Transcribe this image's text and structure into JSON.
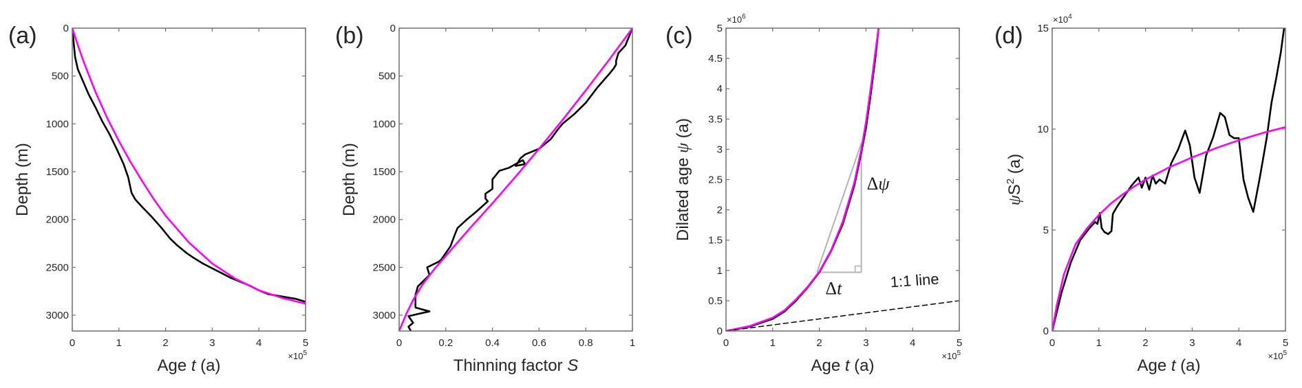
{
  "colors": {
    "data": "#000000",
    "fit": "#ff00ff",
    "triangle": "#b3b3b3",
    "axis": "#6e6e6e",
    "text": "#262626"
  },
  "chart_data": [
    {
      "panel": "(a)",
      "type": "line",
      "xlabel_parts": [
        "Age ",
        "t",
        " (a)"
      ],
      "ylabel": "Depth (m)",
      "xlim": [
        0,
        500000
      ],
      "ylim": [
        0,
        3165
      ],
      "y_reversed": true,
      "x_multiplier": "×10",
      "x_multiplier_exp": "5",
      "xticks": [
        0,
        1,
        2,
        3,
        4,
        5
      ],
      "xtick_labels": [
        "0",
        "1",
        "2",
        "3",
        "4",
        "5"
      ],
      "yticks": [
        0,
        500,
        1000,
        1500,
        2000,
        2500,
        3000
      ],
      "ytick_labels": [
        "0",
        "500",
        "1000",
        "1500",
        "2000",
        "2500",
        "3000"
      ],
      "series": [
        {
          "name": "data",
          "color": "#000000",
          "x": [
            0,
            0.02,
            0.06,
            0.12,
            0.2,
            0.35,
            0.5,
            0.65,
            0.8,
            0.95,
            1.1,
            1.2,
            1.27,
            1.35,
            1.5,
            1.7,
            1.9,
            2.1,
            2.25,
            2.45,
            2.6,
            2.8,
            3.0,
            3.2,
            3.4,
            3.6,
            3.8,
            4.0,
            4.2,
            4.5,
            4.8,
            5.0
          ],
          "y": [
            0,
            100,
            300,
            430,
            520,
            690,
            830,
            980,
            1110,
            1260,
            1420,
            1560,
            1720,
            1790,
            1870,
            1970,
            2080,
            2200,
            2270,
            2350,
            2400,
            2460,
            2510,
            2560,
            2610,
            2650,
            2690,
            2740,
            2780,
            2805,
            2830,
            2860
          ]
        },
        {
          "name": "fit",
          "color": "#ff00ff",
          "x": [
            0,
            0.1,
            0.25,
            0.5,
            0.75,
            1.0,
            1.25,
            1.5,
            1.75,
            2.0,
            2.5,
            3.0,
            3.5,
            4.0,
            4.5,
            5.0
          ],
          "y": [
            0,
            150,
            360,
            670,
            940,
            1180,
            1400,
            1600,
            1790,
            1960,
            2240,
            2460,
            2620,
            2740,
            2820,
            2880
          ]
        }
      ]
    },
    {
      "panel": "(b)",
      "type": "line",
      "xlabel_parts": [
        "Thinning factor ",
        "S",
        ""
      ],
      "ylabel": "Depth (m)",
      "xlim": [
        0,
        1
      ],
      "ylim": [
        0,
        3165
      ],
      "y_reversed": true,
      "xticks": [
        0,
        0.2,
        0.4,
        0.6,
        0.8,
        1
      ],
      "xtick_labels": [
        "0",
        "0.2",
        "0.4",
        "0.6",
        "0.8",
        "1"
      ],
      "yticks": [
        0,
        500,
        1000,
        1500,
        2000,
        2500,
        3000
      ],
      "ytick_labels": [
        "0",
        "500",
        "1000",
        "1500",
        "2000",
        "2500",
        "3000"
      ],
      "series": [
        {
          "name": "data",
          "color": "#000000",
          "x": [
            1.0,
            0.99,
            0.97,
            0.94,
            0.93,
            0.93,
            0.92,
            0.9,
            0.85,
            0.8,
            0.75,
            0.7,
            0.68,
            0.65,
            0.6,
            0.54,
            0.52,
            0.5,
            0.54,
            0.53,
            0.47,
            0.43,
            0.4,
            0.4,
            0.37,
            0.37,
            0.38,
            0.33,
            0.29,
            0.25,
            0.24,
            0.22,
            0.18,
            0.17,
            0.12,
            0.13,
            0.08,
            0.07,
            0.07,
            0.13,
            0.04,
            0.06,
            0.04,
            0.05
          ],
          "y": [
            0,
            60,
            180,
            260,
            340,
            380,
            420,
            480,
            620,
            780,
            900,
            1000,
            1060,
            1160,
            1260,
            1320,
            1360,
            1440,
            1420,
            1380,
            1460,
            1490,
            1580,
            1680,
            1730,
            1780,
            1810,
            1920,
            2000,
            2090,
            2150,
            2280,
            2420,
            2440,
            2500,
            2580,
            2700,
            2790,
            2920,
            2960,
            3010,
            3080,
            3120,
            3165
          ]
        },
        {
          "name": "fit",
          "color": "#ff00ff",
          "x": [
            1.0,
            0.9,
            0.8,
            0.7,
            0.6,
            0.5,
            0.4,
            0.3,
            0.2,
            0.15,
            0.1,
            0.06,
            0.03,
            0.0
          ],
          "y": [
            0,
            330,
            650,
            960,
            1260,
            1550,
            1830,
            2100,
            2380,
            2520,
            2680,
            2840,
            2990,
            3165
          ]
        }
      ]
    },
    {
      "panel": "(c)",
      "type": "line",
      "xlabel_parts": [
        "Age ",
        "t",
        " (a)"
      ],
      "ylabel_parts": [
        "Dilated age ",
        "ψ",
        " (a)"
      ],
      "xlim": [
        0,
        500000
      ],
      "ylim": [
        0,
        5000000
      ],
      "x_multiplier": "×10",
      "x_multiplier_exp": "5",
      "y_multiplier": "×10",
      "y_multiplier_exp": "6",
      "xticks": [
        0,
        1,
        2,
        3,
        4,
        5
      ],
      "xtick_labels": [
        "0",
        "1",
        "2",
        "3",
        "4",
        "5"
      ],
      "yticks": [
        0,
        0.5,
        1,
        1.5,
        2,
        2.5,
        3,
        3.5,
        4,
        4.5,
        5
      ],
      "ytick_labels": [
        "0",
        "0.5",
        "1",
        "1.5",
        "2",
        "2.5",
        "3",
        "3.5",
        "4",
        "4.5",
        "5"
      ],
      "series": [
        {
          "name": "data",
          "color": "#000000",
          "x": [
            0,
            0.5,
            1.0,
            1.25,
            1.5,
            1.75,
            2.0,
            2.25,
            2.5,
            2.75,
            2.9,
            3.0,
            3.1,
            3.2,
            3.27
          ],
          "y": [
            0,
            0.07,
            0.2,
            0.32,
            0.5,
            0.72,
            0.97,
            1.32,
            1.76,
            2.4,
            2.95,
            3.35,
            3.9,
            4.5,
            5.0
          ]
        },
        {
          "name": "fit",
          "color": "#ff00ff",
          "x": [
            0,
            0.5,
            1.0,
            1.25,
            1.5,
            1.75,
            2.0,
            2.25,
            2.5,
            2.75,
            2.9,
            3.0,
            3.1,
            3.2,
            3.27
          ],
          "y": [
            0,
            0.08,
            0.22,
            0.34,
            0.52,
            0.73,
            0.98,
            1.33,
            1.8,
            2.45,
            3.0,
            3.45,
            4.0,
            4.6,
            5.0
          ]
        },
        {
          "name": "1:1 line",
          "color": "#000000",
          "dashed": true,
          "x": [
            0,
            5
          ],
          "y": [
            0,
            0.5
          ]
        }
      ],
      "annotations": {
        "tangent_triangle": {
          "t0": 1.95,
          "psi0": 0.97,
          "t1": 2.9,
          "psi1": 3.1
        },
        "delta_t_label": [
          "Δ",
          "t"
        ],
        "delta_psi_label": [
          "Δ",
          "ψ"
        ],
        "one_to_one_label": "1:1 line"
      }
    },
    {
      "panel": "(d)",
      "type": "line",
      "xlabel_parts": [
        "Age ",
        "t",
        " (a)"
      ],
      "ylabel_parts": [
        "ψ",
        "S",
        "2",
        " (a)"
      ],
      "xlim": [
        0,
        500000
      ],
      "ylim": [
        0,
        150000
      ],
      "x_multiplier": "×10",
      "x_multiplier_exp": "5",
      "y_multiplier": "×10",
      "y_multiplier_exp": "4",
      "xticks": [
        0,
        1,
        2,
        3,
        4,
        5
      ],
      "xtick_labels": [
        "0",
        "1",
        "2",
        "3",
        "4",
        "5"
      ],
      "yticks": [
        0,
        5,
        10,
        15
      ],
      "ytick_labels": [
        "0",
        "5",
        "10",
        "15"
      ],
      "series": [
        {
          "name": "data",
          "color": "#000000",
          "x": [
            0,
            0.2,
            0.4,
            0.6,
            0.8,
            0.92,
            0.97,
            1.02,
            1.06,
            1.12,
            1.2,
            1.27,
            1.3,
            1.4,
            1.55,
            1.7,
            1.85,
            1.92,
            2.0,
            2.08,
            2.15,
            2.22,
            2.3,
            2.42,
            2.55,
            2.7,
            2.85,
            2.95,
            3.05,
            3.16,
            3.3,
            3.45,
            3.6,
            3.7,
            3.8,
            3.9,
            4.0,
            4.1,
            4.2,
            4.31,
            4.45,
            4.6,
            4.7,
            4.8,
            4.9,
            4.97
          ],
          "y": [
            0,
            1.9,
            3.4,
            4.5,
            5.1,
            5.4,
            5.3,
            5.85,
            5.1,
            4.9,
            4.8,
            4.95,
            5.8,
            6.2,
            6.7,
            7.2,
            7.6,
            7.1,
            7.6,
            7.0,
            7.7,
            7.3,
            7.5,
            7.3,
            8.3,
            9.0,
            9.93,
            9.2,
            7.6,
            6.84,
            8.7,
            9.6,
            10.8,
            10.6,
            9.7,
            9.55,
            9.55,
            7.5,
            6.6,
            5.9,
            7.6,
            9.6,
            11.3,
            12.5,
            13.8,
            15.0
          ]
        },
        {
          "name": "fit",
          "color": "#ff00ff",
          "x": [
            0,
            0.1,
            0.25,
            0.5,
            0.75,
            1.0,
            1.25,
            1.5,
            1.75,
            2.0,
            2.5,
            3.0,
            3.5,
            4.0,
            4.5,
            5.0
          ],
          "y": [
            0,
            1.3,
            2.8,
            4.3,
            5.1,
            5.75,
            6.3,
            6.75,
            7.15,
            7.5,
            8.1,
            8.6,
            9.05,
            9.45,
            9.8,
            10.1
          ]
        }
      ]
    }
  ]
}
